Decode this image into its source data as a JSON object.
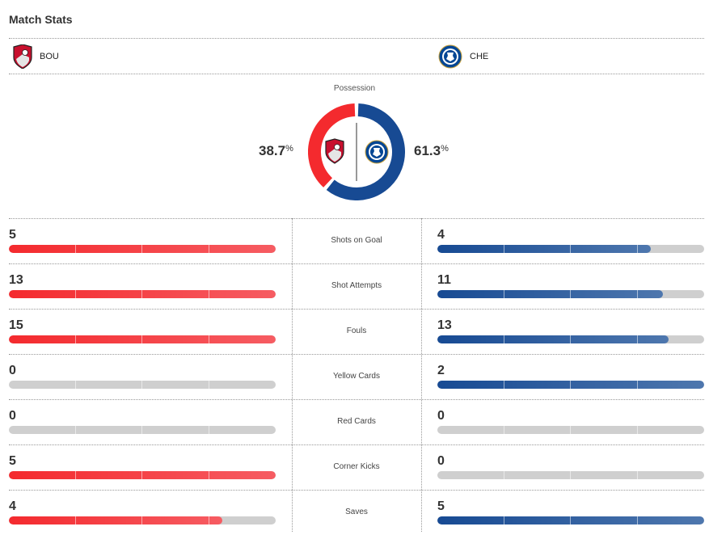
{
  "header": {
    "title": "Match Stats"
  },
  "teams": {
    "home": {
      "abbr": "BOU",
      "icon": "bournemouth-crest-icon",
      "color": "#f42a2e"
    },
    "away": {
      "abbr": "CHE",
      "icon": "chelsea-crest-icon",
      "color": "#174a93"
    }
  },
  "possession": {
    "label": "Possession",
    "home_value": "38.7",
    "away_value": "61.3",
    "unit": "%",
    "home_pct": 38.7,
    "away_pct": 61.3
  },
  "stats": [
    {
      "label": "Shots on Goal",
      "home": "5",
      "away": "4"
    },
    {
      "label": "Shot Attempts",
      "home": "13",
      "away": "11"
    },
    {
      "label": "Fouls",
      "home": "15",
      "away": "13"
    },
    {
      "label": "Yellow Cards",
      "home": "0",
      "away": "2"
    },
    {
      "label": "Red Cards",
      "home": "0",
      "away": "0"
    },
    {
      "label": "Corner Kicks",
      "home": "5",
      "away": "0"
    },
    {
      "label": "Saves",
      "home": "4",
      "away": "5"
    }
  ]
}
